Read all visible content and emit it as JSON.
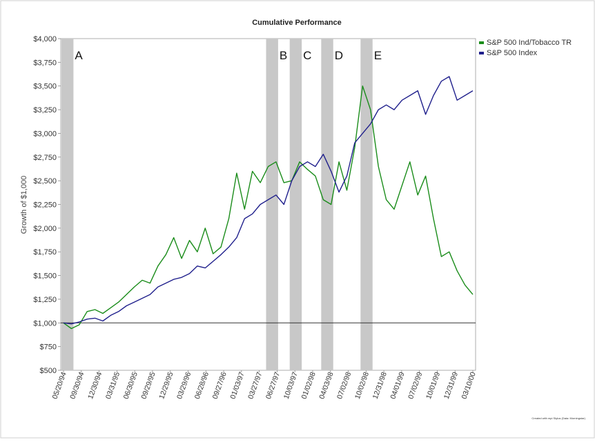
{
  "chart_data": {
    "type": "line",
    "title": "Cumulative Performance",
    "xlabel": "",
    "ylabel": "Growth of $1,000",
    "ylim": [
      500,
      4000
    ],
    "y_ticks": [
      500,
      750,
      1000,
      1250,
      1500,
      1750,
      2000,
      2250,
      2500,
      2750,
      3000,
      3250,
      3500,
      3750,
      4000
    ],
    "y_tick_labels": [
      "$500",
      "$750",
      "$1,000",
      "$1,250",
      "$1,500",
      "$1,750",
      "$2,000",
      "$2,250",
      "$2,500",
      "$2,750",
      "$3,000",
      "$3,250",
      "$3,500",
      "$3,750",
      "$4,000"
    ],
    "x_tick_labels": [
      "05/20/94",
      "09/30/94",
      "12/30/94",
      "03/31/95",
      "06/30/95",
      "09/29/95",
      "12/29/95",
      "03/29/96",
      "06/28/96",
      "09/27/96",
      "01/03/97",
      "03/27/97",
      "06/27/97",
      "10/03/97",
      "01/02/98",
      "04/03/98",
      "07/02/98",
      "10/02/98",
      "12/31/98",
      "04/01/99",
      "07/02/99",
      "10/01/99",
      "12/31/99",
      "03/10/00"
    ],
    "grid": false,
    "legend_position": "top-right",
    "reference_line": 1000,
    "series": [
      {
        "name": "S&P 500 Ind/Tobacco TR",
        "color": "#1a8c1a",
        "values": [
          1000,
          940,
          980,
          1120,
          1140,
          1100,
          1160,
          1220,
          1300,
          1380,
          1450,
          1420,
          1600,
          1720,
          1900,
          1680,
          1870,
          1750,
          2000,
          1730,
          1800,
          2100,
          2580,
          2200,
          2600,
          2480,
          2650,
          2700,
          2480,
          2500,
          2700,
          2620,
          2550,
          2300,
          2250,
          2700,
          2400,
          2850,
          3500,
          3250,
          2650,
          2300,
          2200,
          2450,
          2700,
          2350,
          2550,
          2100,
          1700,
          1750,
          1550,
          1400,
          1300
        ]
      },
      {
        "name": "S&P 500 Index",
        "color": "#1f1f8c",
        "values": [
          1000,
          990,
          1010,
          1040,
          1050,
          1020,
          1080,
          1120,
          1180,
          1220,
          1260,
          1300,
          1380,
          1420,
          1460,
          1480,
          1520,
          1600,
          1580,
          1650,
          1720,
          1800,
          1900,
          2100,
          2150,
          2250,
          2300,
          2350,
          2250,
          2500,
          2650,
          2700,
          2650,
          2780,
          2600,
          2380,
          2550,
          2900,
          3000,
          3100,
          3250,
          3300,
          3250,
          3350,
          3400,
          3450,
          3200,
          3400,
          3550,
          3600,
          3350,
          3400,
          3450
        ]
      }
    ],
    "shaded_periods": [
      {
        "label": "A",
        "start_index": 0,
        "end_index": 1
      },
      {
        "label": "B",
        "start_index": 26,
        "end_index": 27
      },
      {
        "label": "C",
        "start_index": 29,
        "end_index": 30
      },
      {
        "label": "D",
        "start_index": 33,
        "end_index": 34
      },
      {
        "label": "E",
        "start_index": 38,
        "end_index": 39
      }
    ]
  },
  "footer_note": "Created with mpi Stylus (Data: Morningstar)"
}
